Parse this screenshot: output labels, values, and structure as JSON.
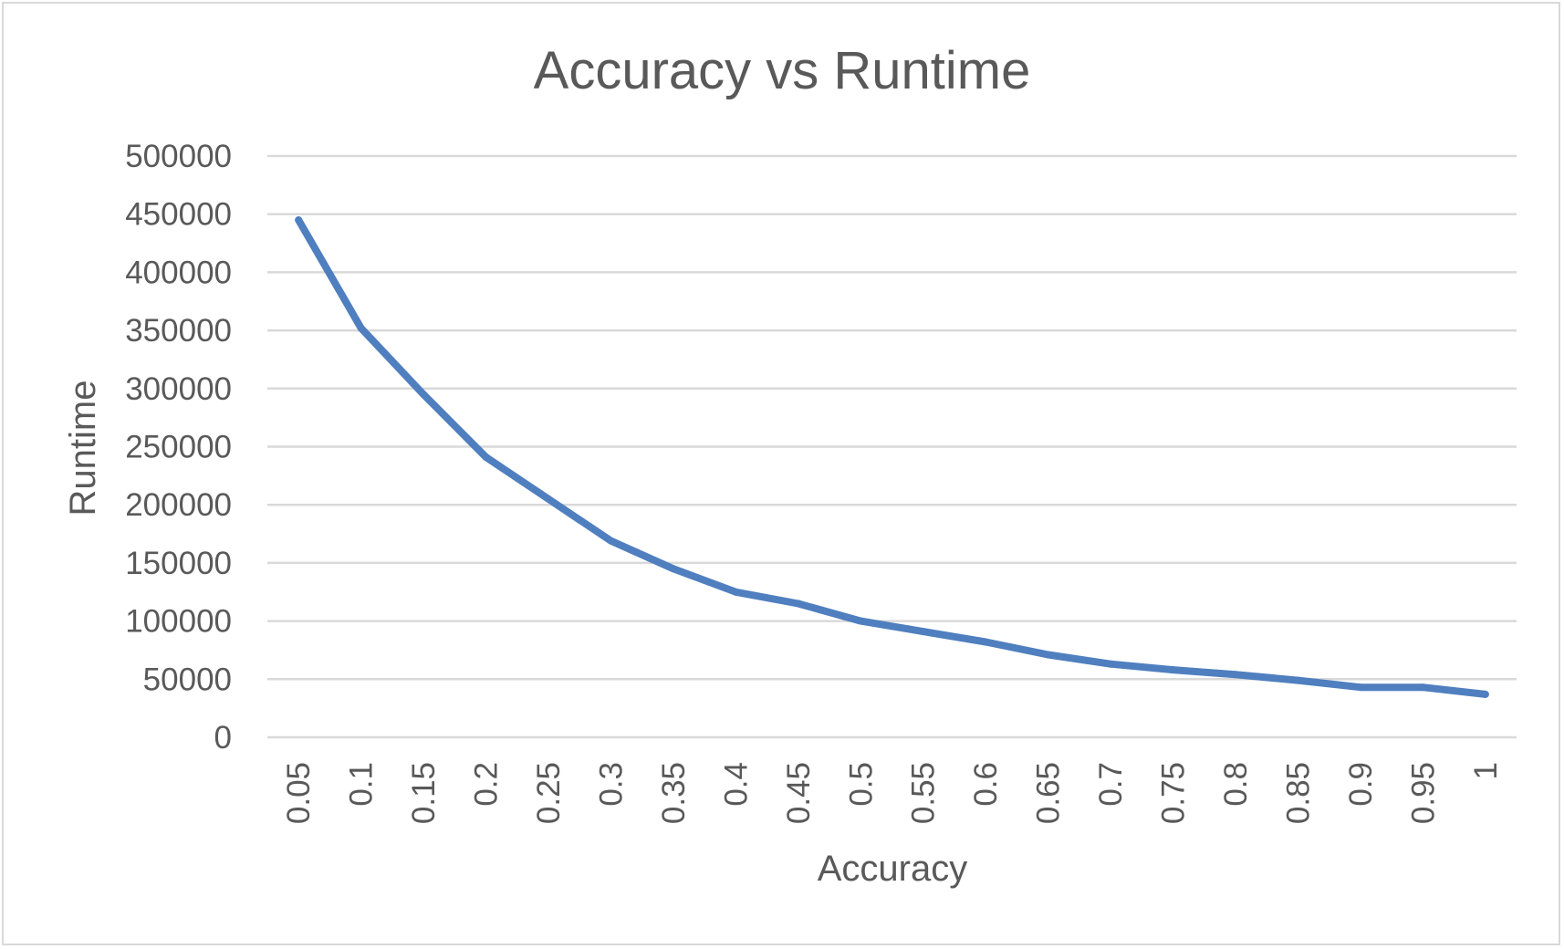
{
  "chart_data": {
    "type": "line",
    "title": "Accuracy vs Runtime",
    "xlabel": "Accuracy",
    "ylabel": "Runtime",
    "categories": [
      "0.05",
      "0.1",
      "0.15",
      "0.2",
      "0.25",
      "0.3",
      "0.35",
      "0.4",
      "0.45",
      "0.5",
      "0.55",
      "0.6",
      "0.65",
      "0.7",
      "0.75",
      "0.8",
      "0.85",
      "0.9",
      "0.95",
      "1"
    ],
    "y_ticks": [
      "0",
      "50000",
      "100000",
      "150000",
      "200000",
      "250000",
      "300000",
      "350000",
      "400000",
      "450000",
      "500000"
    ],
    "ylim": [
      0,
      500000
    ],
    "grid": true,
    "legend": "none",
    "series": [
      {
        "values": [
          445000,
          352000,
          295000,
          241000,
          205000,
          169000,
          145000,
          125000,
          115000,
          100000,
          91000,
          82000,
          71000,
          63000,
          58000,
          54000,
          49000,
          43000,
          43000,
          37000
        ],
        "color": "#4f7fbf"
      }
    ]
  }
}
